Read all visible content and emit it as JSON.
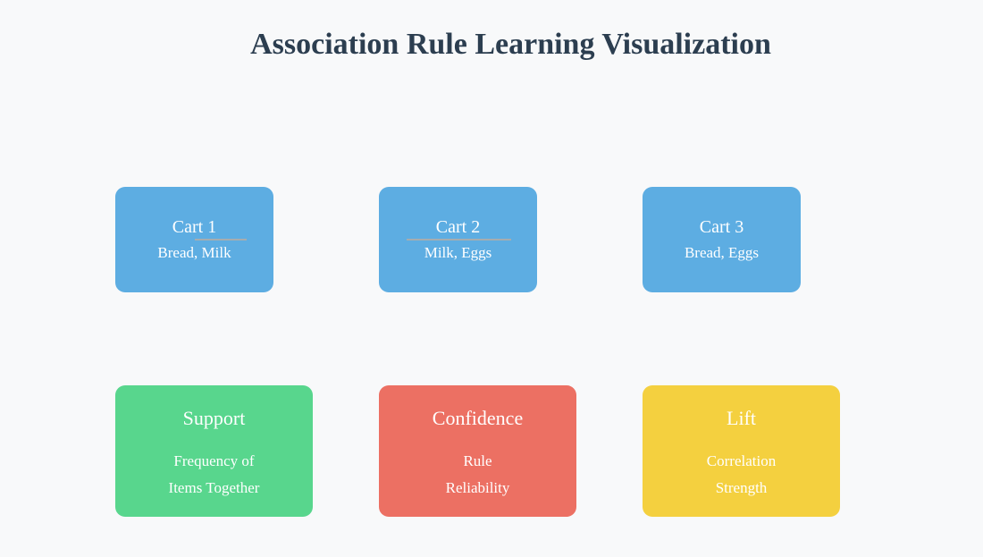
{
  "title": "Association Rule Learning Visualization",
  "carts": [
    {
      "name": "Cart 1",
      "items": "Bread, Milk"
    },
    {
      "name": "Cart 2",
      "items": "Milk, Eggs"
    },
    {
      "name": "Cart 3",
      "items": "Bread, Eggs"
    }
  ],
  "metrics": [
    {
      "name": "Support",
      "desc_line1": "Frequency of",
      "desc_line2": "Items Together",
      "color": "#58d68d"
    },
    {
      "name": "Confidence",
      "desc_line1": "Rule",
      "desc_line2": "Reliability",
      "color": "#ec7063"
    },
    {
      "name": "Lift",
      "desc_line1": "Correlation",
      "desc_line2": "Strength",
      "color": "#f4d03f"
    }
  ],
  "colors": {
    "background": "#f8f9fa",
    "title": "#2c3e50",
    "cart": "#5dade2",
    "connector": "#a6acaf"
  }
}
